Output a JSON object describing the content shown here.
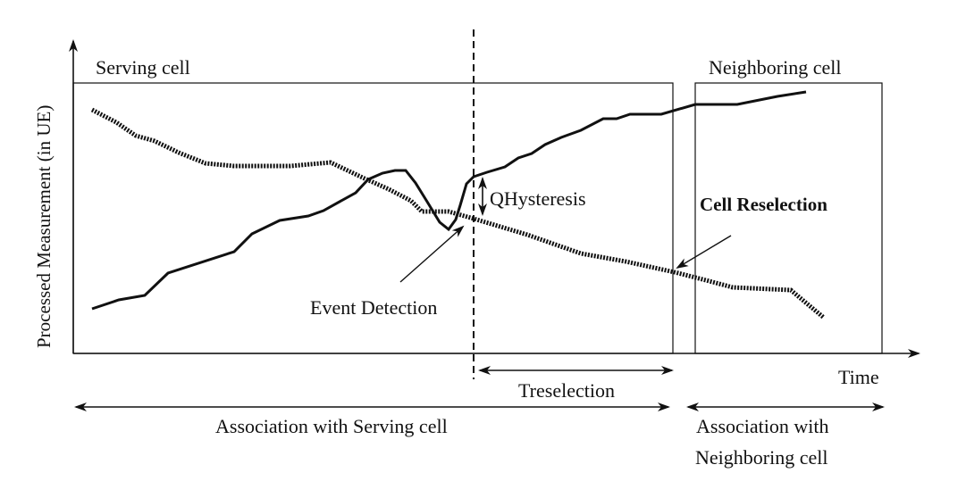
{
  "labels": {
    "serving_cell": "Serving cell",
    "neighboring_cell": "Neighboring cell",
    "y_axis": "Processed Measurement (in UE)",
    "x_axis": "Time",
    "qhysteresis": "QHysteresis",
    "cell_reselection": "Cell Reselection",
    "event_detection": "Event Detection",
    "treselection": "Treselection",
    "association_serving": "Association with Serving cell",
    "association_neighboring_line1": "Association with",
    "association_neighboring_line2": "Neighboring cell"
  },
  "colors": {
    "line": "#111111",
    "background": "#ffffff"
  }
}
